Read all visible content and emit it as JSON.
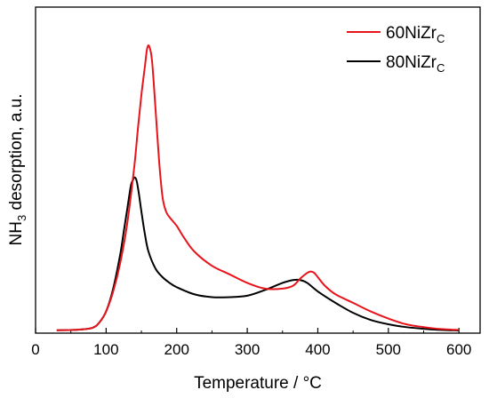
{
  "chart_data": {
    "type": "line",
    "title": "",
    "xlabel": "Temperature / °C",
    "ylabel_main": "NH",
    "ylabel_sub": "3",
    "ylabel_rest": " desorption, a.u.",
    "xlim": [
      0,
      630
    ],
    "ylim": [
      0,
      1.0
    ],
    "xticks": [
      "0",
      "100",
      "200",
      "300",
      "400",
      "500",
      "600"
    ],
    "xtick_values": [
      0,
      100,
      200,
      300,
      400,
      500,
      600
    ],
    "legend_position": "top-right",
    "series": [
      {
        "name_main": "60NiZr",
        "name_sub": "C",
        "color": "#e8141c",
        "x": [
          30,
          60,
          80,
          90,
          100,
          110,
          120,
          130,
          140,
          145,
          150,
          155,
          158,
          161,
          165,
          170,
          175,
          180,
          185,
          190,
          200,
          210,
          225,
          250,
          275,
          300,
          325,
          350,
          365,
          375,
          385,
          390,
          395,
          400,
          410,
          425,
          450,
          475,
          500,
          525,
          550,
          575,
          600
        ],
        "y": [
          0.004,
          0.006,
          0.012,
          0.03,
          0.07,
          0.14,
          0.24,
          0.38,
          0.58,
          0.71,
          0.83,
          0.93,
          0.99,
          1.0,
          0.95,
          0.78,
          0.6,
          0.47,
          0.42,
          0.4,
          0.37,
          0.33,
          0.28,
          0.23,
          0.2,
          0.17,
          0.15,
          0.15,
          0.16,
          0.185,
          0.205,
          0.21,
          0.205,
          0.19,
          0.16,
          0.13,
          0.1,
          0.07,
          0.045,
          0.025,
          0.015,
          0.008,
          0.005
        ]
      },
      {
        "name_main": "80NiZr",
        "name_sub": "C",
        "color": "#000000",
        "x": [
          30,
          60,
          80,
          90,
          100,
          110,
          120,
          125,
          130,
          135,
          138,
          140,
          143,
          146,
          150,
          155,
          160,
          170,
          180,
          190,
          200,
          225,
          250,
          275,
          300,
          325,
          350,
          365,
          375,
          385,
          400,
          425,
          450,
          475,
          500,
          525,
          550,
          575,
          600
        ],
        "y": [
          0.004,
          0.006,
          0.012,
          0.03,
          0.07,
          0.15,
          0.27,
          0.35,
          0.43,
          0.51,
          0.53,
          0.54,
          0.53,
          0.49,
          0.42,
          0.34,
          0.28,
          0.22,
          0.19,
          0.17,
          0.155,
          0.13,
          0.12,
          0.12,
          0.125,
          0.145,
          0.17,
          0.18,
          0.18,
          0.17,
          0.14,
          0.1,
          0.065,
          0.04,
          0.025,
          0.015,
          0.009,
          0.005,
          0.003
        ]
      }
    ]
  }
}
